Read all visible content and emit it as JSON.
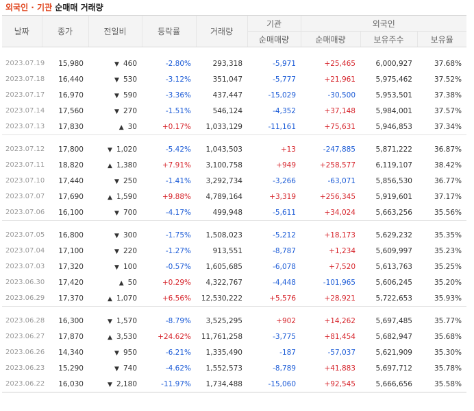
{
  "title": {
    "part1": "외국인 · 기관",
    "part2": " 순매매 거래량"
  },
  "header": {
    "date": "날짜",
    "close": "종가",
    "change": "전일비",
    "rate": "등락률",
    "volume": "거래량",
    "inst_group": "기관",
    "foreign_group": "외국인",
    "inst_net": "순매매량",
    "foreign_net": "순매매량",
    "holdings": "보유주수",
    "ratio": "보유율"
  },
  "colors": {
    "up": "#d6242b",
    "down": "#1a5ad6",
    "orange": "#e0461f"
  },
  "groups": [
    [
      {
        "date": "2023.07.19",
        "close": "15,980",
        "dir": "down",
        "change": "460",
        "rate": "-2.80%",
        "volume": "293,318",
        "inst": "-5,971",
        "foreign": "+25,465",
        "holdings": "6,000,927",
        "ratio": "37.68%"
      },
      {
        "date": "2023.07.18",
        "close": "16,440",
        "dir": "down",
        "change": "530",
        "rate": "-3.12%",
        "volume": "351,047",
        "inst": "-5,777",
        "foreign": "+21,961",
        "holdings": "5,975,462",
        "ratio": "37.52%"
      },
      {
        "date": "2023.07.17",
        "close": "16,970",
        "dir": "down",
        "change": "590",
        "rate": "-3.36%",
        "volume": "437,447",
        "inst": "-15,029",
        "foreign": "-30,500",
        "holdings": "5,953,501",
        "ratio": "37.38%"
      },
      {
        "date": "2023.07.14",
        "close": "17,560",
        "dir": "down",
        "change": "270",
        "rate": "-1.51%",
        "volume": "546,124",
        "inst": "-4,352",
        "foreign": "+37,148",
        "holdings": "5,984,001",
        "ratio": "37.57%"
      },
      {
        "date": "2023.07.13",
        "close": "17,830",
        "dir": "up",
        "change": "30",
        "rate": "+0.17%",
        "volume": "1,033,129",
        "inst": "-11,161",
        "foreign": "+75,631",
        "holdings": "5,946,853",
        "ratio": "37.34%"
      }
    ],
    [
      {
        "date": "2023.07.12",
        "close": "17,800",
        "dir": "down",
        "change": "1,020",
        "rate": "-5.42%",
        "volume": "1,043,503",
        "inst": "+13",
        "foreign": "-247,885",
        "holdings": "5,871,222",
        "ratio": "36.87%"
      },
      {
        "date": "2023.07.11",
        "close": "18,820",
        "dir": "up",
        "change": "1,380",
        "rate": "+7.91%",
        "volume": "3,100,758",
        "inst": "+949",
        "foreign": "+258,577",
        "holdings": "6,119,107",
        "ratio": "38.42%"
      },
      {
        "date": "2023.07.10",
        "close": "17,440",
        "dir": "down",
        "change": "250",
        "rate": "-1.41%",
        "volume": "3,292,734",
        "inst": "-3,266",
        "foreign": "-63,071",
        "holdings": "5,856,530",
        "ratio": "36.77%"
      },
      {
        "date": "2023.07.07",
        "close": "17,690",
        "dir": "up",
        "change": "1,590",
        "rate": "+9.88%",
        "volume": "4,789,164",
        "inst": "+3,319",
        "foreign": "+256,345",
        "holdings": "5,919,601",
        "ratio": "37.17%"
      },
      {
        "date": "2023.07.06",
        "close": "16,100",
        "dir": "down",
        "change": "700",
        "rate": "-4.17%",
        "volume": "499,948",
        "inst": "-5,611",
        "foreign": "+34,024",
        "holdings": "5,663,256",
        "ratio": "35.56%"
      }
    ],
    [
      {
        "date": "2023.07.05",
        "close": "16,800",
        "dir": "down",
        "change": "300",
        "rate": "-1.75%",
        "volume": "1,508,023",
        "inst": "-5,212",
        "foreign": "+18,173",
        "holdings": "5,629,232",
        "ratio": "35.35%"
      },
      {
        "date": "2023.07.04",
        "close": "17,100",
        "dir": "down",
        "change": "220",
        "rate": "-1.27%",
        "volume": "913,551",
        "inst": "-8,787",
        "foreign": "+1,234",
        "holdings": "5,609,997",
        "ratio": "35.23%"
      },
      {
        "date": "2023.07.03",
        "close": "17,320",
        "dir": "down",
        "change": "100",
        "rate": "-0.57%",
        "volume": "1,605,685",
        "inst": "-6,078",
        "foreign": "+7,520",
        "holdings": "5,613,763",
        "ratio": "35.25%"
      },
      {
        "date": "2023.06.30",
        "close": "17,420",
        "dir": "up",
        "change": "50",
        "rate": "+0.29%",
        "volume": "4,322,767",
        "inst": "-4,448",
        "foreign": "-101,965",
        "holdings": "5,606,245",
        "ratio": "35.20%"
      },
      {
        "date": "2023.06.29",
        "close": "17,370",
        "dir": "up",
        "change": "1,070",
        "rate": "+6.56%",
        "volume": "12,530,222",
        "inst": "+5,576",
        "foreign": "+28,921",
        "holdings": "5,722,653",
        "ratio": "35.93%"
      }
    ],
    [
      {
        "date": "2023.06.28",
        "close": "16,300",
        "dir": "down",
        "change": "1,570",
        "rate": "-8.79%",
        "volume": "3,525,295",
        "inst": "+902",
        "foreign": "+14,262",
        "holdings": "5,697,485",
        "ratio": "35.77%"
      },
      {
        "date": "2023.06.27",
        "close": "17,870",
        "dir": "up",
        "change": "3,530",
        "rate": "+24.62%",
        "volume": "11,761,258",
        "inst": "-3,775",
        "foreign": "+81,454",
        "holdings": "5,682,947",
        "ratio": "35.68%"
      },
      {
        "date": "2023.06.26",
        "close": "14,340",
        "dir": "down",
        "change": "950",
        "rate": "-6.21%",
        "volume": "1,335,490",
        "inst": "-187",
        "foreign": "-57,037",
        "holdings": "5,621,909",
        "ratio": "35.30%"
      },
      {
        "date": "2023.06.23",
        "close": "15,290",
        "dir": "down",
        "change": "740",
        "rate": "-4.62%",
        "volume": "1,552,573",
        "inst": "-8,789",
        "foreign": "+41,883",
        "holdings": "5,697,712",
        "ratio": "35.78%"
      },
      {
        "date": "2023.06.22",
        "close": "16,030",
        "dir": "down",
        "change": "2,180",
        "rate": "-11.97%",
        "volume": "1,734,488",
        "inst": "-15,060",
        "foreign": "+92,545",
        "holdings": "5,666,656",
        "ratio": "35.58%"
      }
    ]
  ]
}
